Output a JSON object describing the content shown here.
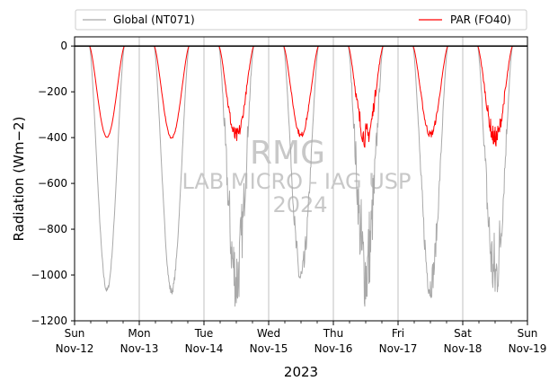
{
  "chart_data": {
    "type": "line",
    "xlabel": "2023",
    "ylabel": "Radiation (Wm−2)",
    "ylim": [
      -1200,
      40
    ],
    "yticks": [
      0,
      -200,
      -400,
      -600,
      -800,
      -1000,
      -1200
    ],
    "xlim_days": [
      "2023-11-12",
      "2023-11-19"
    ],
    "grid": "vertical-at-days",
    "legend_placement": "top-outside",
    "xticks": [
      {
        "day": "Sun",
        "date": "Nov-12"
      },
      {
        "day": "Mon",
        "date": "Nov-13"
      },
      {
        "day": "Tue",
        "date": "Nov-14"
      },
      {
        "day": "Wed",
        "date": "Nov-15"
      },
      {
        "day": "Thu",
        "date": "Nov-16"
      },
      {
        "day": "Fri",
        "date": "Nov-17"
      },
      {
        "day": "Sat",
        "date": "Nov-18"
      },
      {
        "day": "Sun",
        "date": "Nov-19"
      }
    ],
    "series": [
      {
        "name": "Global (NT071)",
        "color": "#a9a9a9",
        "daily_minimum": [
          -1075,
          -1085,
          -1150,
          -1060,
          -1145,
          -1105,
          -1125
        ],
        "noise": [
          0.02,
          0.03,
          0.32,
          0.12,
          0.38,
          0.14,
          0.3
        ]
      },
      {
        "name": "PAR (FO40)",
        "color": "#ff0000",
        "daily_minimum": [
          -400,
          -405,
          -420,
          -400,
          -445,
          -400,
          -440
        ],
        "noise": [
          0.01,
          0.02,
          0.15,
          0.06,
          0.25,
          0.08,
          0.2
        ]
      }
    ],
    "watermark": [
      "RMG",
      "LAB MICRO - IAG USP",
      "2024"
    ]
  }
}
